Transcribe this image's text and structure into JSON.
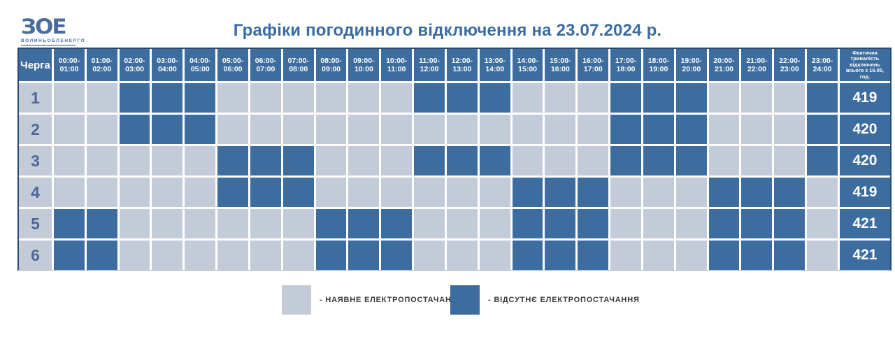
{
  "logo": {
    "mark": "ЗОЕ",
    "name": "ВОЛИНЬОБЛЕНЕРГО"
  },
  "title": "Графіки погодинного відключення на 23.07.2024 р.",
  "chart_data": {
    "type": "heatmap",
    "title": "Графіки погодинного відключення на 23.07.2024 р.",
    "queue_header": "Черга",
    "time_slots": [
      "00:00-01:00",
      "01:00-02:00",
      "02:00-03:00",
      "03:00-04:00",
      "04:00-05:00",
      "05:00-06:00",
      "06:00-07:00",
      "07:00-08:00",
      "08:00-09:00",
      "09:00-10:00",
      "10:00-11:00",
      "11:00-12:00",
      "12:00-13:00",
      "13:00-14:00",
      "14:00-15:00",
      "15:00-16:00",
      "16:00-17:00",
      "17:00-18:00",
      "18:00-19:00",
      "19:00-20:00",
      "20:00-21:00",
      "21:00-22:00",
      "22:00-23:00",
      "23:00-24:00"
    ],
    "totals_header": "Фактична тривалість відключень всього з 16.05, год.",
    "rows": [
      {
        "queue": "1",
        "outage": [
          0,
          0,
          1,
          1,
          1,
          0,
          0,
          0,
          0,
          0,
          0,
          1,
          1,
          1,
          0,
          0,
          0,
          1,
          1,
          1,
          0,
          0,
          0,
          1
        ],
        "total": "419"
      },
      {
        "queue": "2",
        "outage": [
          0,
          0,
          1,
          1,
          1,
          0,
          0,
          0,
          0,
          0,
          0,
          0,
          0,
          0,
          0,
          0,
          0,
          1,
          1,
          1,
          0,
          0,
          0,
          1
        ],
        "total": "420"
      },
      {
        "queue": "3",
        "outage": [
          0,
          0,
          0,
          0,
          0,
          1,
          1,
          1,
          0,
          0,
          0,
          1,
          1,
          1,
          0,
          0,
          0,
          1,
          1,
          1,
          0,
          0,
          0,
          1
        ],
        "total": "420"
      },
      {
        "queue": "4",
        "outage": [
          0,
          0,
          0,
          0,
          0,
          1,
          1,
          1,
          0,
          0,
          0,
          0,
          0,
          0,
          1,
          1,
          1,
          0,
          0,
          0,
          1,
          1,
          1,
          0
        ],
        "total": "419"
      },
      {
        "queue": "5",
        "outage": [
          1,
          1,
          0,
          0,
          0,
          0,
          0,
          0,
          1,
          1,
          1,
          0,
          0,
          0,
          1,
          1,
          1,
          0,
          0,
          0,
          1,
          1,
          1,
          0
        ],
        "total": "421"
      },
      {
        "queue": "6",
        "outage": [
          1,
          1,
          0,
          0,
          0,
          0,
          0,
          0,
          1,
          1,
          1,
          0,
          0,
          0,
          1,
          1,
          1,
          0,
          0,
          0,
          1,
          1,
          1,
          0
        ],
        "total": "421"
      }
    ]
  },
  "legend": {
    "available_label": "- НАЯВНЕ ЕЛЕКТРОПОСТАЧАННЯ",
    "absent_label": "- ВІДСУТНЄ ЕЛЕКТРОПОСТАЧАННЯ"
  },
  "colors": {
    "available": "#c4cbd8",
    "absent": "#3d6c9e",
    "header_bg": "#3d6c9e",
    "title_text": "#3a6ca3",
    "queue_number": "#4b6899",
    "table_border": "#2a4a73"
  }
}
